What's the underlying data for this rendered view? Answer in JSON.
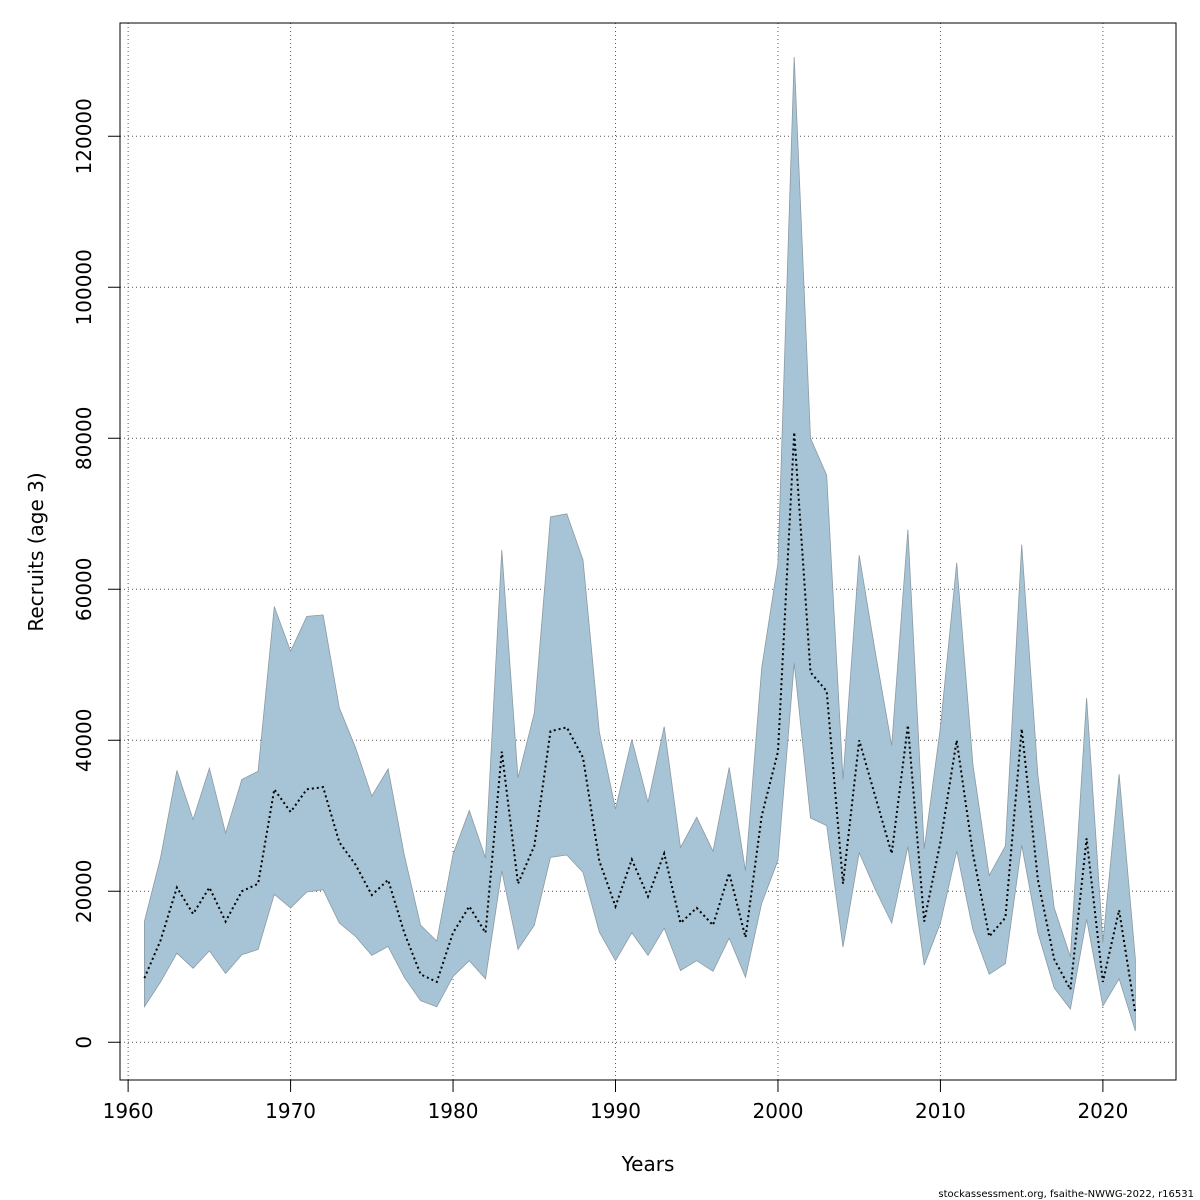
{
  "chart_data": {
    "type": "area",
    "xlabel": "Years",
    "ylabel": "Recruits (age 3)",
    "xlim": [
      1959.5,
      2024.5
    ],
    "ylim": [
      -5000,
      135000
    ],
    "x_ticks": [
      1960,
      1970,
      1980,
      1990,
      2000,
      2010,
      2020
    ],
    "y_ticks": [
      0,
      20000,
      40000,
      60000,
      80000,
      100000,
      120000
    ],
    "grid": true,
    "colors": {
      "band_fill": "#a6c4d5",
      "band_edge": "#8c9aa3",
      "line": "#000000",
      "grid": "#555555"
    },
    "x": [
      1961,
      1962,
      1963,
      1964,
      1965,
      1966,
      1967,
      1968,
      1969,
      1970,
      1971,
      1972,
      1973,
      1974,
      1975,
      1976,
      1977,
      1978,
      1979,
      1980,
      1981,
      1982,
      1983,
      1984,
      1985,
      1986,
      1987,
      1988,
      1989,
      1990,
      1991,
      1992,
      1993,
      1994,
      1995,
      1996,
      1997,
      1998,
      1999,
      2000,
      2001,
      2002,
      2003,
      2004,
      2005,
      2006,
      2007,
      2008,
      2009,
      2010,
      2011,
      2012,
      2013,
      2014,
      2015,
      2016,
      2017,
      2018,
      2019,
      2020,
      2021,
      2022
    ],
    "series": [
      {
        "role": "estimate",
        "values": [
          8500,
          13500,
          20500,
          17000,
          20500,
          16000,
          20000,
          21000,
          33500,
          30500,
          33500,
          33800,
          26500,
          23500,
          19500,
          21500,
          14500,
          9000,
          8000,
          14500,
          18000,
          14500,
          38500,
          21000,
          26000,
          41200,
          41700,
          37700,
          24000,
          18000,
          24200,
          19300,
          25000,
          15800,
          17800,
          15500,
          22400,
          13900,
          30000,
          38500,
          80800,
          49000,
          46500,
          21000,
          40000,
          32500,
          25000,
          42000,
          16000,
          26500,
          40000,
          25000,
          14000,
          16500,
          41500,
          21500,
          11000,
          7000,
          27000,
          8000,
          17500,
          3800
        ]
      },
      {
        "role": "upper",
        "values": [
          16000,
          24500,
          36000,
          29500,
          36300,
          27700,
          34800,
          35900,
          57700,
          51800,
          56400,
          56600,
          44300,
          39000,
          32600,
          36200,
          24800,
          15500,
          13400,
          24900,
          30700,
          24400,
          65200,
          35000,
          43600,
          69600,
          70000,
          63900,
          41100,
          30900,
          40100,
          31800,
          41800,
          25800,
          29800,
          25300,
          36400,
          22700,
          49600,
          63500,
          130500,
          80000,
          75100,
          34800,
          64500,
          51600,
          39300,
          67900,
          25600,
          41700,
          63500,
          36800,
          22100,
          26000,
          65900,
          35400,
          17800,
          11300,
          45600,
          13200,
          35500,
          11000
        ]
      },
      {
        "role": "lower",
        "values": [
          4700,
          8000,
          11800,
          9800,
          12100,
          9100,
          11600,
          12300,
          19600,
          17800,
          19900,
          20200,
          15800,
          14000,
          11500,
          12700,
          8600,
          5500,
          4700,
          8700,
          10800,
          8400,
          22700,
          12300,
          15500,
          24500,
          24800,
          22500,
          14600,
          10800,
          14500,
          11500,
          15100,
          9500,
          10800,
          9400,
          13800,
          8600,
          18400,
          24100,
          50200,
          29700,
          28700,
          12600,
          25100,
          20200,
          15800,
          25900,
          10200,
          15800,
          25300,
          14900,
          9000,
          10400,
          26100,
          14500,
          7200,
          4400,
          16300,
          4800,
          8400,
          1500
        ]
      }
    ],
    "footer": "stockassessment.org, fsaithe-NWWG-2022, r16531"
  }
}
